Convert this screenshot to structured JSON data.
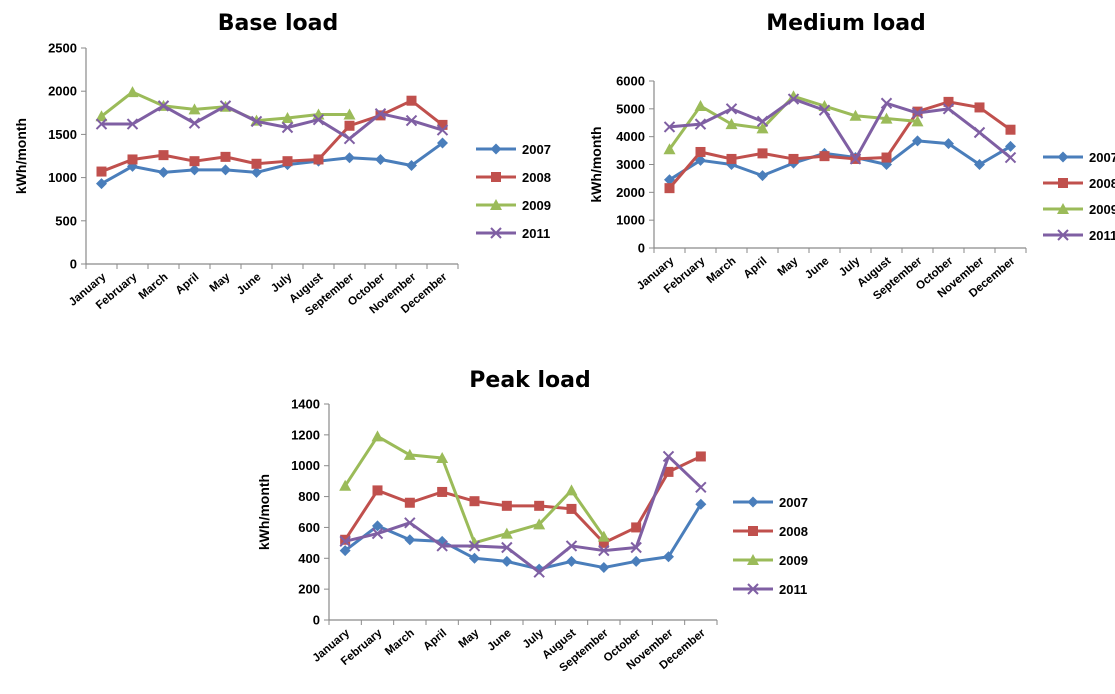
{
  "chart_data": [
    {
      "type": "line",
      "title": "Base load",
      "ylabel": "kWh/month",
      "ylim": [
        0,
        2500
      ],
      "yticks": [
        0,
        500,
        1000,
        1500,
        2000,
        2500
      ],
      "categories": [
        "January",
        "February",
        "March",
        "April",
        "May",
        "June",
        "July",
        "August",
        "September",
        "October",
        "November",
        "December"
      ],
      "series": [
        {
          "name": "2007",
          "marker": "diamond",
          "color": "#4a7ebb",
          "values": [
            930,
            1130,
            1060,
            1090,
            1090,
            1060,
            1150,
            1190,
            1230,
            1210,
            1140,
            1400
          ]
        },
        {
          "name": "2008",
          "marker": "square",
          "color": "#c0504d",
          "values": [
            1070,
            1210,
            1260,
            1190,
            1240,
            1160,
            1190,
            1210,
            1600,
            1720,
            1890,
            1610
          ]
        },
        {
          "name": "2009",
          "marker": "triangle",
          "color": "#9bbb59",
          "values": [
            1710,
            1990,
            1830,
            1790,
            1820,
            1660,
            1690,
            1730,
            1730,
            null,
            null,
            null
          ]
        },
        {
          "name": "2011",
          "marker": "x",
          "color": "#7f5fa3",
          "values": [
            1620,
            1620,
            1830,
            1630,
            1830,
            1650,
            1580,
            1670,
            1450,
            1740,
            1660,
            1550
          ]
        }
      ]
    },
    {
      "type": "line",
      "title": "Medium load",
      "ylabel": "kWh/month",
      "ylim": [
        0,
        6000
      ],
      "yticks": [
        0,
        1000,
        2000,
        3000,
        4000,
        5000,
        6000
      ],
      "categories": [
        "January",
        "February",
        "March",
        "April",
        "May",
        "June",
        "July",
        "August",
        "September",
        "October",
        "November",
        "December"
      ],
      "series": [
        {
          "name": "2007",
          "marker": "diamond",
          "color": "#4a7ebb",
          "values": [
            2450,
            3150,
            3000,
            2600,
            3050,
            3400,
            3250,
            3000,
            3850,
            3750,
            3000,
            3650
          ]
        },
        {
          "name": "2008",
          "marker": "square",
          "color": "#c0504d",
          "values": [
            2150,
            3450,
            3200,
            3400,
            3200,
            3300,
            3200,
            3250,
            4900,
            5250,
            5050,
            4250
          ]
        },
        {
          "name": "2009",
          "marker": "triangle",
          "color": "#9bbb59",
          "values": [
            3550,
            5100,
            4450,
            4300,
            5450,
            5100,
            4750,
            4650,
            4550,
            null,
            null,
            null
          ]
        },
        {
          "name": "2011",
          "marker": "x",
          "color": "#7f5fa3",
          "values": [
            4350,
            4450,
            5000,
            4550,
            5350,
            4950,
            3200,
            5200,
            4850,
            5000,
            4150,
            3250
          ]
        }
      ]
    },
    {
      "type": "line",
      "title": "Peak load",
      "ylabel": "kWh/month",
      "ylim": [
        0,
        1400
      ],
      "yticks": [
        0,
        200,
        400,
        600,
        800,
        1000,
        1200,
        1400
      ],
      "categories": [
        "January",
        "February",
        "March",
        "April",
        "May",
        "June",
        "July",
        "August",
        "September",
        "October",
        "November",
        "December"
      ],
      "series": [
        {
          "name": "2007",
          "marker": "diamond",
          "color": "#4a7ebb",
          "values": [
            450,
            610,
            520,
            510,
            400,
            380,
            330,
            380,
            340,
            380,
            410,
            750
          ]
        },
        {
          "name": "2008",
          "marker": "square",
          "color": "#c0504d",
          "values": [
            520,
            840,
            760,
            830,
            770,
            740,
            740,
            720,
            500,
            600,
            960,
            1060
          ]
        },
        {
          "name": "2009",
          "marker": "triangle",
          "color": "#9bbb59",
          "values": [
            870,
            1190,
            1070,
            1050,
            500,
            560,
            620,
            840,
            540,
            null,
            null,
            null
          ]
        },
        {
          "name": "2011",
          "marker": "x",
          "color": "#7f5fa3",
          "values": [
            510,
            560,
            630,
            480,
            480,
            470,
            310,
            480,
            450,
            470,
            1060,
            860
          ]
        }
      ]
    }
  ]
}
